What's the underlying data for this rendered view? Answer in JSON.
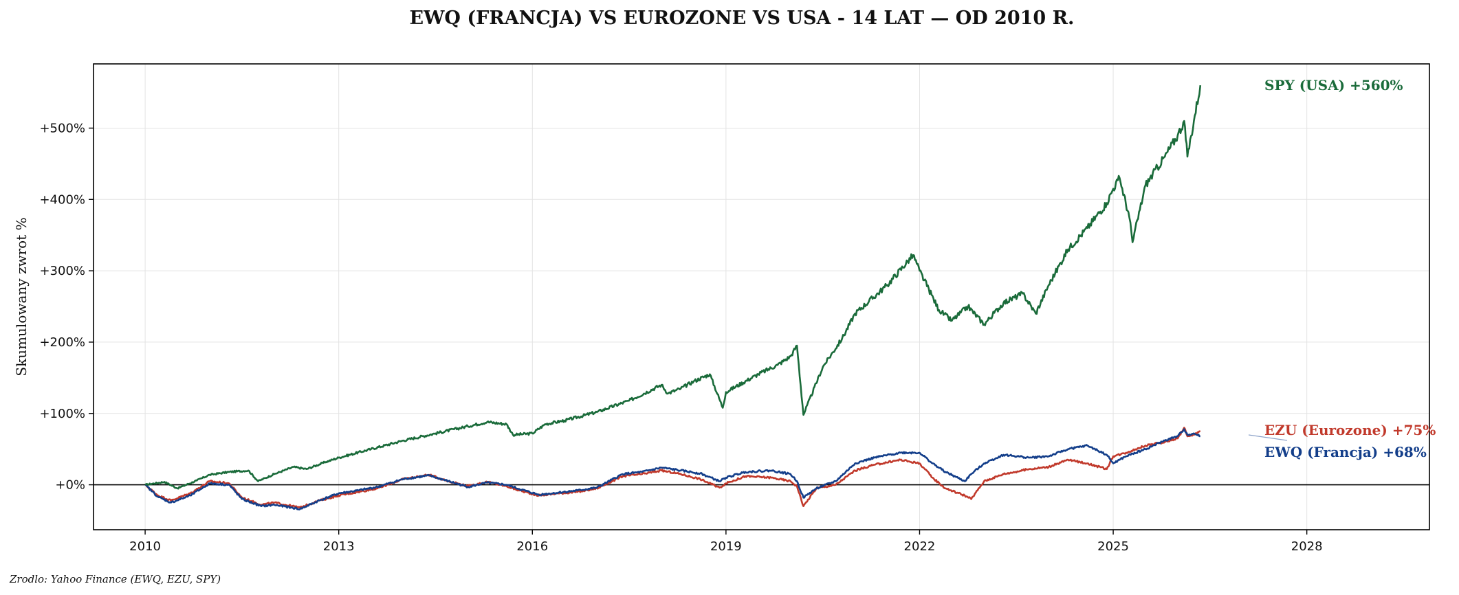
{
  "chart_data": {
    "type": "line",
    "title": "EWQ (FRANCJA) VS EUROZONE VS USA - 14 LAT — OD 2010 R.",
    "ylabel": "Skumulowany zwrot %",
    "xlabel": "",
    "source": "Zrodlo: Yahoo Finance (EWQ, EZU, SPY)",
    "xlim": [
      2009.2,
      2029.9
    ],
    "ylim": [
      -63,
      590
    ],
    "x_ticks": [
      {
        "value": 2010,
        "label": "2010"
      },
      {
        "value": 2013,
        "label": "2013"
      },
      {
        "value": 2016,
        "label": "2016"
      },
      {
        "value": 2019,
        "label": "2019"
      },
      {
        "value": 2022,
        "label": "2022"
      },
      {
        "value": 2025,
        "label": "2025"
      },
      {
        "value": 2028,
        "label": "2028"
      }
    ],
    "y_ticks": [
      {
        "value": 0,
        "label": "+0%"
      },
      {
        "value": 100,
        "label": "+100%"
      },
      {
        "value": 200,
        "label": "+200%"
      },
      {
        "value": 300,
        "label": "+300%"
      },
      {
        "value": 400,
        "label": "+400%"
      },
      {
        "value": 500,
        "label": "+500%"
      }
    ],
    "grid": true,
    "zero_line": true,
    "series": [
      {
        "name": "SPY (USA)",
        "color": "#1a6b3a",
        "end_label": "SPY (USA)  +560%",
        "x": [
          2010.0,
          2010.3,
          2010.5,
          2010.8,
          2011.0,
          2011.3,
          2011.6,
          2011.75,
          2012.0,
          2012.3,
          2012.5,
          2012.8,
          2013.0,
          2013.5,
          2014.0,
          2014.5,
          2015.0,
          2015.3,
          2015.6,
          2015.7,
          2016.0,
          2016.2,
          2016.5,
          2017.0,
          2017.5,
          2018.0,
          2018.1,
          2018.3,
          2018.5,
          2018.75,
          2018.95,
          2019.0,
          2019.5,
          2019.8,
          2020.0,
          2020.1,
          2020.2,
          2020.5,
          2020.8,
          2021.0,
          2021.5,
          2021.9,
          2022.0,
          2022.3,
          2022.5,
          2022.75,
          2023.0,
          2023.3,
          2023.6,
          2023.8,
          2024.0,
          2024.3,
          2024.6,
          2024.9,
          2025.0,
          2025.1,
          2025.25,
          2025.3,
          2025.5,
          2025.8,
          2026.0,
          2026.1,
          2026.15,
          2026.25,
          2026.35
        ],
        "values": [
          0,
          4,
          -5,
          6,
          14,
          18,
          20,
          5,
          15,
          25,
          22,
          32,
          38,
          50,
          62,
          72,
          82,
          88,
          85,
          70,
          72,
          85,
          90,
          102,
          118,
          140,
          128,
          135,
          145,
          155,
          108,
          130,
          155,
          168,
          180,
          195,
          98,
          165,
          205,
          240,
          280,
          322,
          300,
          245,
          230,
          250,
          225,
          255,
          268,
          240,
          280,
          330,
          360,
          395,
          415,
          430,
          375,
          340,
          420,
          460,
          490,
          510,
          460,
          510,
          560
        ]
      },
      {
        "name": "EZU (Eurozone)",
        "color": "#c1392b",
        "end_label": "EZU (Eurozone)  +75%",
        "x": [
          2010.0,
          2010.2,
          2010.4,
          2010.7,
          2011.0,
          2011.3,
          2011.5,
          2011.8,
          2012.0,
          2012.4,
          2012.7,
          2013.0,
          2013.3,
          2013.6,
          2014.0,
          2014.4,
          2014.7,
          2015.0,
          2015.3,
          2015.6,
          2015.8,
          2016.1,
          2016.4,
          2016.7,
          2017.0,
          2017.4,
          2017.7,
          2018.0,
          2018.3,
          2018.6,
          2018.9,
          2019.0,
          2019.3,
          2019.7,
          2020.0,
          2020.1,
          2020.2,
          2020.4,
          2020.7,
          2021.0,
          2021.3,
          2021.7,
          2022.0,
          2022.2,
          2022.4,
          2022.7,
          2022.8,
          2023.0,
          2023.3,
          2023.7,
          2024.0,
          2024.3,
          2024.6,
          2024.9,
          2025.0,
          2025.2,
          2025.5,
          2025.8,
          2026.0,
          2026.1,
          2026.15,
          2026.25,
          2026.35
        ],
        "values": [
          0,
          -15,
          -22,
          -12,
          5,
          2,
          -18,
          -28,
          -25,
          -32,
          -22,
          -15,
          -10,
          -5,
          8,
          14,
          5,
          -2,
          4,
          -2,
          -8,
          -15,
          -12,
          -10,
          -5,
          12,
          15,
          20,
          15,
          8,
          -4,
          2,
          12,
          10,
          5,
          -2,
          -30,
          -5,
          0,
          20,
          28,
          35,
          30,
          10,
          -5,
          -15,
          -20,
          5,
          15,
          22,
          25,
          35,
          30,
          22,
          40,
          45,
          55,
          60,
          65,
          80,
          68,
          70,
          75
        ]
      },
      {
        "name": "EWQ (Francja)",
        "color": "#133e8a",
        "end_label": "EWQ (Francja)  +68%",
        "x": [
          2010.0,
          2010.2,
          2010.4,
          2010.7,
          2011.0,
          2011.3,
          2011.5,
          2011.8,
          2012.0,
          2012.4,
          2012.7,
          2013.0,
          2013.3,
          2013.6,
          2014.0,
          2014.4,
          2014.7,
          2015.0,
          2015.3,
          2015.6,
          2015.8,
          2016.1,
          2016.4,
          2016.7,
          2017.0,
          2017.4,
          2017.7,
          2018.0,
          2018.3,
          2018.6,
          2018.9,
          2019.0,
          2019.3,
          2019.7,
          2020.0,
          2020.1,
          2020.2,
          2020.4,
          2020.7,
          2021.0,
          2021.3,
          2021.7,
          2022.0,
          2022.2,
          2022.4,
          2022.7,
          2022.8,
          2023.0,
          2023.3,
          2023.7,
          2024.0,
          2024.3,
          2024.6,
          2024.9,
          2025.0,
          2025.2,
          2025.5,
          2025.8,
          2026.0,
          2026.1,
          2026.15,
          2026.25,
          2026.35
        ],
        "values": [
          0,
          -17,
          -25,
          -15,
          2,
          0,
          -20,
          -30,
          -28,
          -34,
          -22,
          -12,
          -8,
          -3,
          8,
          13,
          5,
          -3,
          3,
          0,
          -6,
          -14,
          -11,
          -8,
          -4,
          15,
          18,
          24,
          20,
          16,
          5,
          10,
          18,
          20,
          15,
          5,
          -18,
          -5,
          5,
          30,
          38,
          45,
          45,
          30,
          18,
          5,
          15,
          30,
          42,
          38,
          40,
          50,
          55,
          42,
          30,
          40,
          50,
          62,
          68,
          78,
          70,
          72,
          68
        ]
      }
    ]
  }
}
